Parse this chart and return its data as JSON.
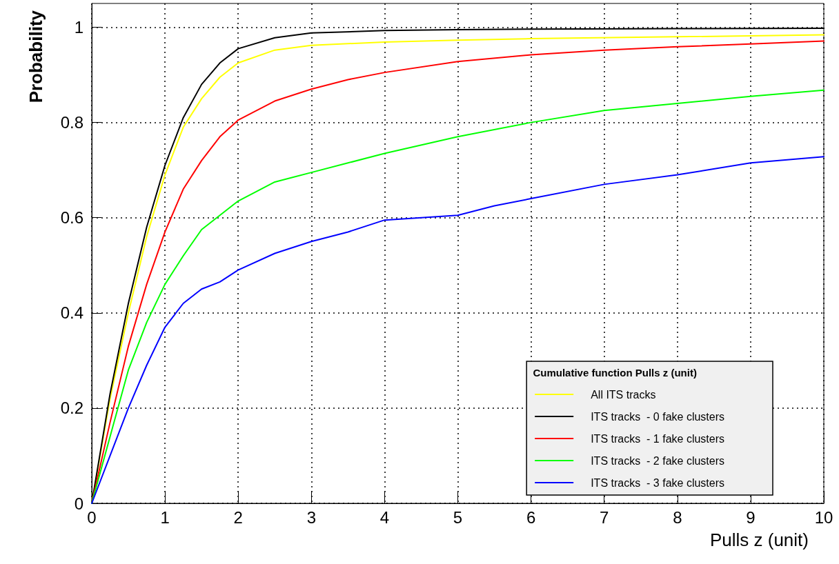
{
  "chart_data": {
    "type": "line",
    "xlabel": "Pulls z (unit)",
    "ylabel": "Probability",
    "legend_title": "Cumulative function Pulls z (unit)",
    "xlim": [
      0,
      10
    ],
    "ylim": [
      0,
      1.05
    ],
    "xticks": [
      0,
      1,
      2,
      3,
      4,
      5,
      6,
      7,
      8,
      9,
      10
    ],
    "yticks": [
      0,
      0.2,
      0.4,
      0.6,
      0.8,
      1
    ],
    "grid": true,
    "legend": "bottom right",
    "marker": "none",
    "line_style": "solid",
    "series": [
      {
        "name": "All ITS tracks",
        "color": "#ffff00",
        "x": [
          0,
          0.25,
          0.5,
          0.75,
          1,
          1.25,
          1.5,
          1.75,
          2,
          2.5,
          3,
          4,
          5,
          6,
          8,
          10
        ],
        "values": [
          0,
          0.22,
          0.4,
          0.56,
          0.69,
          0.79,
          0.85,
          0.895,
          0.925,
          0.952,
          0.962,
          0.969,
          0.973,
          0.976,
          0.98,
          0.984
        ]
      },
      {
        "name": "ITS tracks  - 0 fake clusters",
        "color": "#000000",
        "x": [
          0,
          0.25,
          0.5,
          0.75,
          1,
          1.25,
          1.5,
          1.75,
          2,
          2.5,
          3,
          4,
          5,
          6,
          8,
          10
        ],
        "values": [
          0,
          0.23,
          0.42,
          0.58,
          0.71,
          0.81,
          0.88,
          0.925,
          0.955,
          0.978,
          0.988,
          0.993,
          0.995,
          0.996,
          0.997,
          0.998
        ]
      },
      {
        "name": "ITS tracks  - 1 fake clusters",
        "color": "#ff0000",
        "x": [
          0,
          0.25,
          0.5,
          0.75,
          1,
          1.25,
          1.5,
          1.75,
          2,
          2.5,
          3,
          3.5,
          4,
          5,
          6,
          7,
          8,
          9,
          10
        ],
        "values": [
          0,
          0.17,
          0.33,
          0.46,
          0.57,
          0.66,
          0.72,
          0.77,
          0.805,
          0.845,
          0.87,
          0.89,
          0.905,
          0.928,
          0.942,
          0.952,
          0.959,
          0.965,
          0.971
        ]
      },
      {
        "name": "ITS tracks  - 2 fake clusters",
        "color": "#00ff00",
        "x": [
          0,
          0.25,
          0.5,
          0.75,
          1,
          1.25,
          1.5,
          1.75,
          2,
          2.5,
          3,
          3.5,
          4,
          5,
          6,
          7,
          8,
          9,
          10
        ],
        "values": [
          0,
          0.14,
          0.28,
          0.38,
          0.46,
          0.52,
          0.575,
          0.605,
          0.635,
          0.675,
          0.695,
          0.715,
          0.735,
          0.77,
          0.8,
          0.825,
          0.84,
          0.855,
          0.868
        ]
      },
      {
        "name": "ITS tracks  - 3 fake clusters",
        "color": "#0000ff",
        "x": [
          0,
          0.25,
          0.5,
          0.75,
          1,
          1.25,
          1.5,
          1.75,
          2,
          2.5,
          3,
          3.5,
          4,
          5,
          5.5,
          6,
          7,
          8,
          9,
          10
        ],
        "values": [
          0,
          0.1,
          0.2,
          0.29,
          0.37,
          0.42,
          0.45,
          0.465,
          0.49,
          0.525,
          0.55,
          0.57,
          0.595,
          0.605,
          0.625,
          0.64,
          0.67,
          0.69,
          0.715,
          0.728
        ]
      }
    ]
  }
}
